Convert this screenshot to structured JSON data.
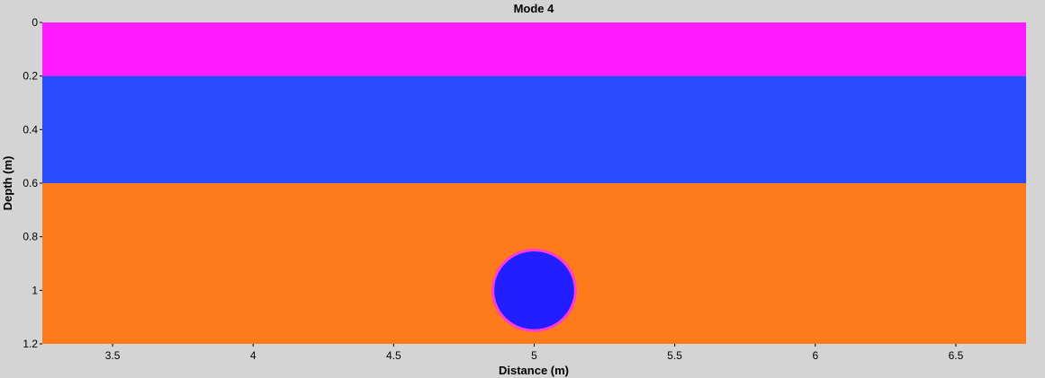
{
  "chart_data": {
    "type": "heatmap",
    "title": "Mode 4",
    "xlabel": "Distance (m)",
    "ylabel": "Depth (m)",
    "xlim": [
      3.25,
      6.75
    ],
    "ylim": [
      1.2,
      0
    ],
    "x_ticks": [
      "3.5",
      "4",
      "4.5",
      "5",
      "5.5",
      "6",
      "6.5"
    ],
    "y_ticks": [
      "0",
      "0.2",
      "0.4",
      "0.6",
      "0.8",
      "1",
      "1.2"
    ],
    "layers": [
      {
        "top": 0.0,
        "bottom": 0.2,
        "color": "#ff1aff"
      },
      {
        "top": 0.2,
        "bottom": 0.6,
        "color": "#2b4bff"
      },
      {
        "top": 0.6,
        "bottom": 1.2,
        "color": "#ff7a1a"
      }
    ],
    "anomaly": {
      "shape": "circle",
      "center_x": 5.0,
      "center_y": 1.0,
      "radius_x": 0.15,
      "fill": "#221eff",
      "edge": "#ff3ad6"
    },
    "background_color": "#d4d4d4"
  }
}
